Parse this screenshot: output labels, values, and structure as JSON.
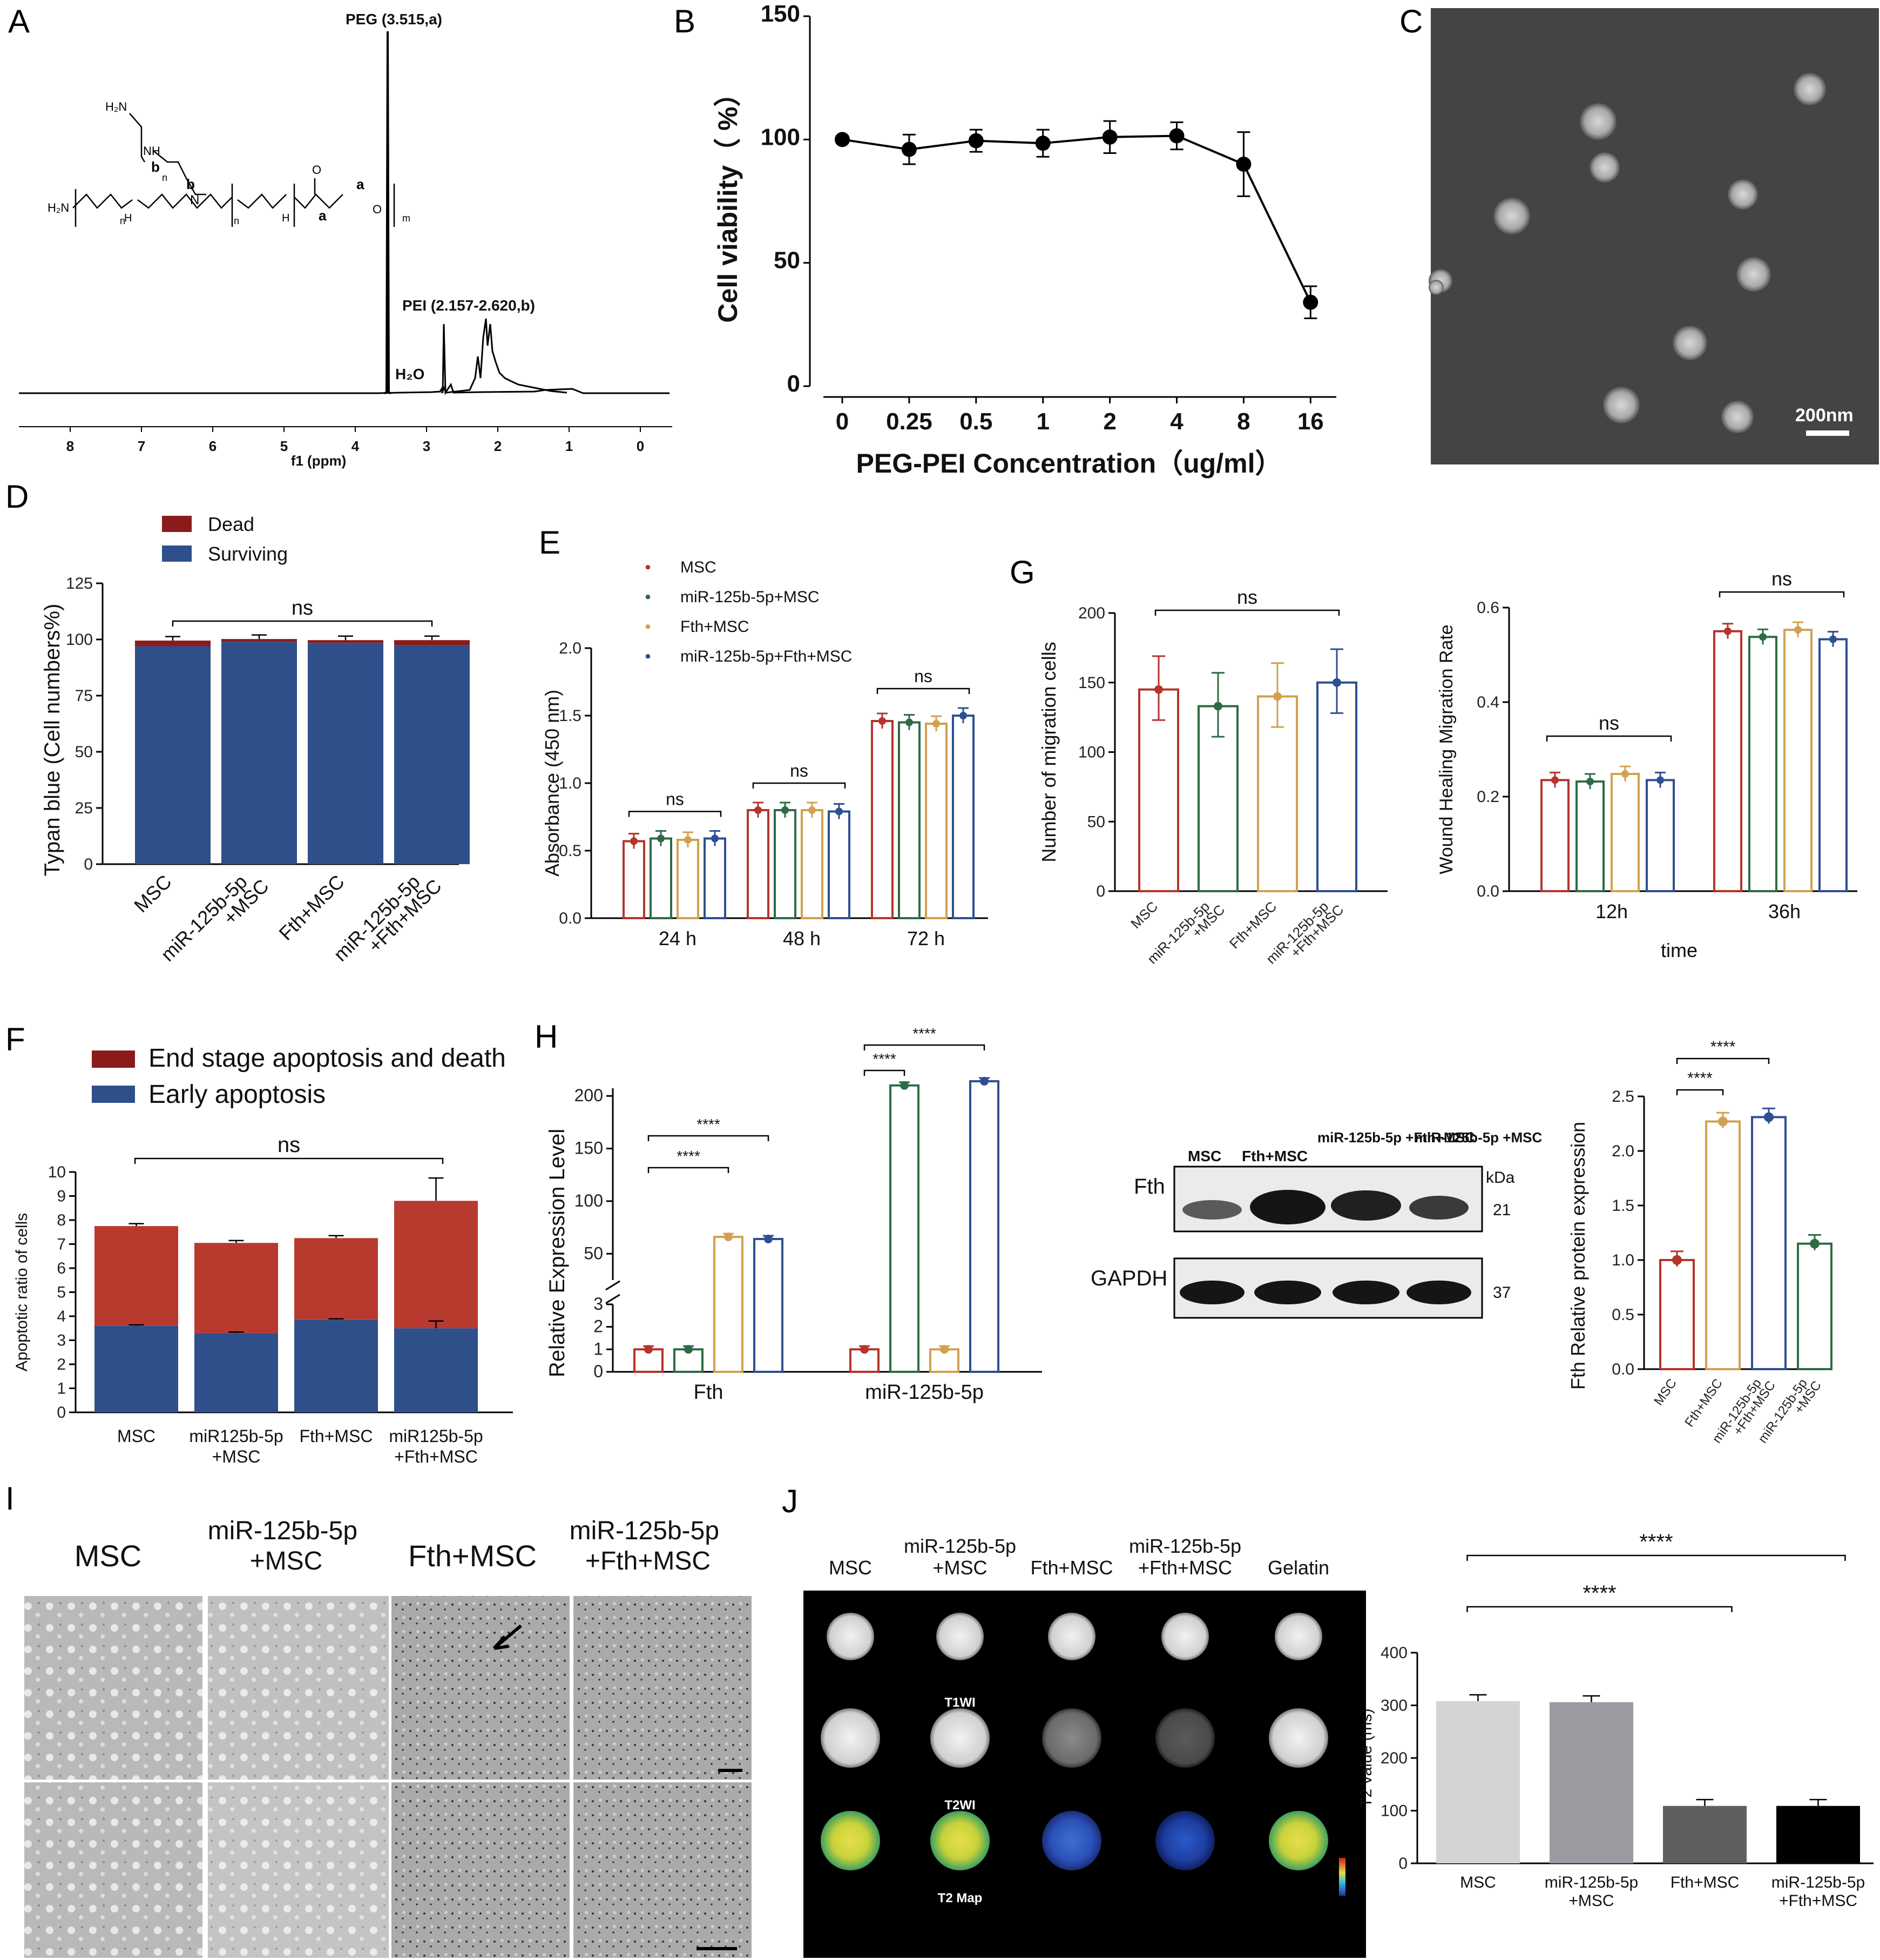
{
  "panel_letters": [
    "A",
    "B",
    "C",
    "D",
    "E",
    "F",
    "G",
    "H",
    "I",
    "J"
  ],
  "colors": {
    "red": "#b5342b",
    "green": "#2e6b45",
    "gold": "#d2a050",
    "blue": "#2e4f91",
    "dark_red": "#8b1a1a",
    "navy": "#2f4f8a",
    "gray1": "#d4d4d4",
    "gray2": "#9a9aa0",
    "gray3": "#5f5f5f",
    "black": "#000000"
  },
  "panelA": {
    "peg_label": "PEG (3.515,a)",
    "pei_label": "PEI (2.157-2.620,b)",
    "water_label": "H₂O",
    "xlabel": "f1 (ppm)",
    "structure_labels": [
      "H₂N",
      "NH",
      "b",
      "b",
      "H₂N",
      "H",
      "N",
      "H",
      "a",
      "a",
      "O",
      "m",
      "n",
      "n",
      "n",
      "O"
    ]
  },
  "chart_data": [
    {
      "id": "B",
      "type": "line",
      "categories": [
        "0",
        "0.25",
        "0.5",
        "1",
        "2",
        "4",
        "8",
        "16"
      ],
      "values": [
        100,
        96,
        99.5,
        98.5,
        101,
        101.5,
        90,
        34
      ],
      "errors": [
        1.5,
        6,
        4.5,
        5.5,
        6.5,
        5.5,
        13,
        6.5
      ],
      "xlabel": "PEG-PEI  Concentration（ug/ml）",
      "ylabel": "Cell viability（ %）",
      "ylim": [
        0,
        150
      ],
      "yticks": [
        "0",
        "50",
        "100",
        "150"
      ]
    },
    {
      "id": "D",
      "type": "bar",
      "categories": [
        "MSC",
        "miR-125b-5p +MSC",
        "Fth+MSC",
        "miR-125b-5p +Fth+MSC"
      ],
      "series": [
        {
          "name": "Surviving",
          "values": [
            97,
            99,
            98.5,
            97.5
          ]
        },
        {
          "name": "Dead",
          "values": [
            2.5,
            1.2,
            1.2,
            2.2
          ]
        }
      ],
      "ylabel": "Typan blue (Cell numbers%)",
      "ylim": [
        0,
        125
      ],
      "yticks": [
        "0",
        "25",
        "50",
        "75",
        "100",
        "125"
      ],
      "annotation": "ns"
    },
    {
      "id": "E",
      "type": "bar",
      "categories": [
        "24 h",
        "48 h",
        "72 h"
      ],
      "series": [
        {
          "name": "MSC",
          "values": [
            0.57,
            0.8,
            1.46
          ]
        },
        {
          "name": "miR-125b-5p+MSC",
          "values": [
            0.59,
            0.8,
            1.45
          ]
        },
        {
          "name": "Fth+MSC",
          "values": [
            0.58,
            0.8,
            1.44
          ]
        },
        {
          "name": "miR-125b-5p+Fth+MSC",
          "values": [
            0.59,
            0.79,
            1.5
          ]
        }
      ],
      "ylabel": "Absorbance (450 nm)",
      "ylim": [
        0,
        2.0
      ],
      "yticks": [
        "0.0",
        "0.5",
        "1.0",
        "1.5",
        "2.0"
      ],
      "annotations": [
        "ns",
        "ns",
        "ns"
      ]
    },
    {
      "id": "F",
      "type": "bar",
      "categories": [
        "MSC",
        "miR125b-5p +MSC",
        "Fth+MSC",
        "miR125b-5p +Fth+MSC"
      ],
      "series": [
        {
          "name": "Early apoptosis",
          "values": [
            3.6,
            3.3,
            3.85,
            3.5
          ]
        },
        {
          "name": "End stage apoptosis and death",
          "values": [
            4.15,
            3.75,
            3.4,
            5.3
          ]
        }
      ],
      "ylabel": "Apoptotic ratio of cells",
      "ylim": [
        0,
        10
      ],
      "yticks": [
        "0",
        "1",
        "2",
        "3",
        "4",
        "5",
        "6",
        "7",
        "8",
        "9",
        "10"
      ],
      "annotation": "ns"
    },
    {
      "id": "G1",
      "type": "bar",
      "categories": [
        "MSC",
        "miR-125b-5p +MSC",
        "Fth+MSC",
        "miR-125b-5p +Fth+MSC"
      ],
      "values": [
        145,
        133,
        140,
        150
      ],
      "ylabel": "Number of migration cells",
      "ylim": [
        0,
        200
      ],
      "yticks": [
        "0",
        "50",
        "100",
        "150",
        "200"
      ],
      "annotation": "ns"
    },
    {
      "id": "G2",
      "type": "bar",
      "categories": [
        "12h",
        "36h"
      ],
      "series": [
        {
          "name": "MSC",
          "values": [
            0.235,
            0.55
          ]
        },
        {
          "name": "miR-125b-5p+MSC",
          "values": [
            0.232,
            0.538
          ]
        },
        {
          "name": "Fth+MSC",
          "values": [
            0.248,
            0.553
          ]
        },
        {
          "name": "miR-125b-5p+Fth+MSC",
          "values": [
            0.235,
            0.533
          ]
        }
      ],
      "xlabel": "time",
      "ylabel": "Wound Healing Migration Rate",
      "ylim": [
        0,
        0.6
      ],
      "yticks": [
        "0.0",
        "0.2",
        "0.4",
        "0.6"
      ],
      "annotations": [
        "ns",
        "ns"
      ]
    },
    {
      "id": "H1",
      "type": "bar",
      "categories": [
        "Fth",
        "miR-125b-5p"
      ],
      "series": [
        {
          "name": "MSC",
          "values": [
            1,
            1
          ]
        },
        {
          "name": "miR-125b-5p+MSC",
          "values": [
            1,
            210
          ]
        },
        {
          "name": "Fth+MSC",
          "values": [
            66,
            1
          ]
        },
        {
          "name": "miR-125b-5p+Fth+MSC",
          "values": [
            64,
            214
          ]
        }
      ],
      "ylabel": "Relative Expression Level",
      "yticks_low": [
        "0",
        "1",
        "2",
        "3"
      ],
      "yticks_high": [
        "50",
        "100",
        "150",
        "200"
      ],
      "annotations": [
        "****",
        "****",
        "****",
        "****"
      ]
    },
    {
      "id": "H2",
      "type": "bar",
      "categories": [
        "MSC",
        "Fth+MSC",
        "miR-125b-5p +Fth+MSC",
        "miR-125b-5p +MSC"
      ],
      "values": [
        1.0,
        2.27,
        2.31,
        1.15
      ],
      "ylabel": "Fth Relative protein expression",
      "ylim": [
        0,
        2.5
      ],
      "yticks": [
        "0.0",
        "0.5",
        "1.0",
        "1.5",
        "2.0",
        "2.5"
      ],
      "annotations": [
        "****",
        "****"
      ]
    },
    {
      "id": "J",
      "type": "bar",
      "categories": [
        "MSC",
        "miR-125b-5p +MSC",
        "Fth+MSC",
        "miR-125b-5p +Fth+MSC"
      ],
      "values": [
        308,
        306,
        109,
        109
      ],
      "errors": [
        12,
        12,
        12,
        12
      ],
      "ylabel": "T2 value (ms)",
      "ylim": [
        0,
        400
      ],
      "yticks": [
        "0",
        "100",
        "200",
        "300",
        "400"
      ],
      "annotations": [
        "****",
        "****"
      ]
    }
  ],
  "panelC": {
    "scale": "200nm"
  },
  "westernH": {
    "lanes": [
      "MSC",
      "Fth+MSC",
      "miR-125b-5p +Fth+MSC",
      "miR-125b-5p +MSC"
    ],
    "rows": [
      "Fth",
      "GAPDH"
    ],
    "kda_label": "kDa",
    "kda": [
      "21",
      "37"
    ]
  },
  "panelI": {
    "headers": [
      "MSC",
      "miR-125b-5p +MSC",
      "Fth+MSC",
      "miR-125b-5p +Fth+MSC"
    ]
  },
  "panelJ": {
    "headers": [
      "MSC",
      "miR-125b-5p +MSC",
      "Fth+MSC",
      "miR-125b-5p +Fth+MSC",
      "Gelatin"
    ],
    "rows": [
      "T1WI",
      "T2WI",
      "T2 Map"
    ]
  }
}
